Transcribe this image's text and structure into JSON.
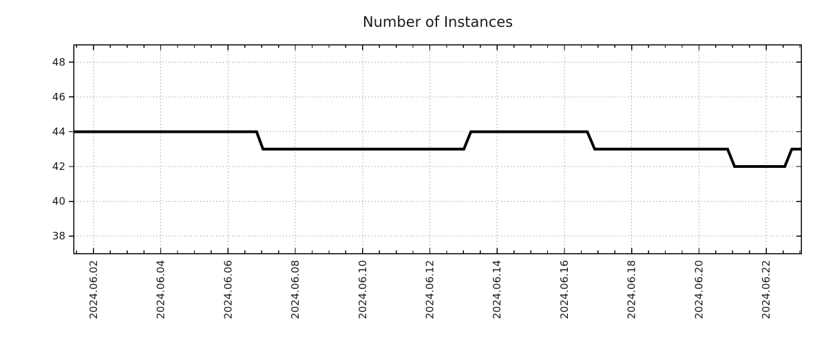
{
  "chart_data": {
    "type": "line",
    "line_style": "step-with-short-ramps",
    "title": "Number of Instances",
    "legend": "none",
    "grid": {
      "show": true,
      "color": "#b0b0b0",
      "style": "dotted"
    },
    "colors": {
      "axis": "#000000",
      "tick_text": "#1a1a1a",
      "title_text": "#1a1a1a",
      "series": "#000000",
      "background": "#ffffff"
    },
    "x_axis": {
      "unit": "date",
      "tick_labels": [
        "2024.06.02",
        "2024.06.04",
        "2024.06.06",
        "2024.06.08",
        "2024.06.10",
        "2024.06.12",
        "2024.06.14",
        "2024.06.16",
        "2024.06.18",
        "2024.06.20",
        "2024.06.22"
      ],
      "tick_days": [
        2,
        4,
        6,
        8,
        10,
        12,
        14,
        16,
        18,
        20,
        22
      ],
      "minor_tick_step_days": 0.5,
      "minor_tick_start_day": 1.5,
      "minor_tick_end_day": 23.0,
      "range_days": [
        1.41,
        23.04
      ],
      "label_rotation_deg": -90
    },
    "y_axis": {
      "ticks": [
        38,
        40,
        42,
        44,
        46,
        48
      ],
      "range": [
        37,
        49
      ]
    },
    "series": [
      {
        "name": "instances",
        "color": "#000000",
        "line_width": 4,
        "points_day_value": [
          [
            1.41,
            44
          ],
          [
            6.85,
            44
          ],
          [
            7.04,
            43
          ],
          [
            13.01,
            43
          ],
          [
            13.22,
            44
          ],
          [
            16.68,
            44
          ],
          [
            16.9,
            43
          ],
          [
            20.85,
            43
          ],
          [
            21.06,
            42
          ],
          [
            22.55,
            42
          ],
          [
            22.76,
            43
          ],
          [
            23.04,
            43
          ]
        ]
      }
    ],
    "readable_steps": [
      {
        "from": "2024.06.01",
        "to": "2024.06.07",
        "value": 44
      },
      {
        "from": "2024.06.07",
        "to": "2024.06.13",
        "value": 43
      },
      {
        "from": "2024.06.13",
        "to": "2024.06.16",
        "value": 44
      },
      {
        "from": "2024.06.17",
        "to": "2024.06.21",
        "value": 43
      },
      {
        "from": "2024.06.21",
        "to": "2024.06.22",
        "value": 42
      },
      {
        "from": "2024.06.22",
        "to": "2024.06.23",
        "value": 43
      }
    ]
  }
}
